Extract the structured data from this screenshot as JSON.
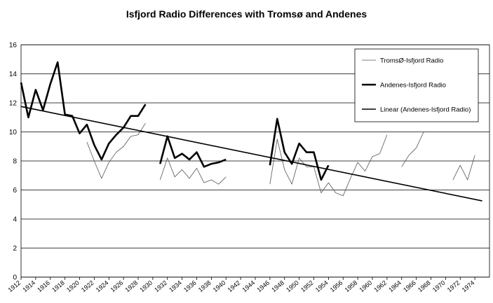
{
  "chart_data": {
    "type": "line",
    "title": "Isfjord Radio Differences with Tromsø and Andenes",
    "xlabel": "",
    "ylabel": "",
    "ylim": [
      0,
      16
    ],
    "xlim": [
      1912,
      1976
    ],
    "yticks": [
      0,
      2,
      4,
      6,
      8,
      10,
      12,
      14,
      16
    ],
    "xticks": [
      1912,
      1914,
      1916,
      1918,
      1920,
      1922,
      1924,
      1926,
      1928,
      1930,
      1932,
      1934,
      1936,
      1938,
      1940,
      1942,
      1944,
      1946,
      1948,
      1950,
      1952,
      1954,
      1956,
      1958,
      1960,
      1962,
      1964,
      1966,
      1968,
      1970,
      1972,
      1974
    ],
    "grid": "horizontal",
    "legend_position": "top-right",
    "series": [
      {
        "name": "TromsØ-Isfjord Radio",
        "color": "#000000",
        "style": "thin",
        "points": [
          [
            1921,
            9.3
          ],
          [
            1922,
            8.0
          ],
          [
            1923,
            6.8
          ],
          [
            1924,
            7.9
          ],
          [
            1925,
            8.6
          ],
          [
            1926,
            9.0
          ],
          [
            1927,
            9.7
          ],
          [
            1928,
            9.8
          ],
          [
            1929,
            10.6
          ],
          null,
          [
            1931,
            6.7
          ],
          [
            1932,
            8.2
          ],
          [
            1933,
            6.9
          ],
          [
            1934,
            7.4
          ],
          [
            1935,
            6.8
          ],
          [
            1936,
            7.5
          ],
          [
            1937,
            6.5
          ],
          [
            1938,
            6.7
          ],
          [
            1939,
            6.4
          ],
          [
            1940,
            6.9
          ],
          null,
          [
            1946,
            6.4
          ],
          [
            1947,
            9.5
          ],
          [
            1948,
            7.4
          ],
          [
            1949,
            6.4
          ],
          [
            1950,
            8.2
          ],
          [
            1951,
            7.6
          ],
          [
            1952,
            7.6
          ],
          [
            1953,
            5.8
          ],
          [
            1954,
            6.5
          ],
          [
            1955,
            5.8
          ],
          [
            1956,
            5.6
          ],
          [
            1957,
            6.8
          ],
          [
            1958,
            7.9
          ],
          [
            1959,
            7.3
          ],
          [
            1960,
            8.3
          ],
          [
            1961,
            8.5
          ],
          [
            1962,
            9.8
          ],
          null,
          [
            1964,
            7.6
          ],
          [
            1965,
            8.4
          ],
          [
            1966,
            8.9
          ],
          [
            1967,
            10.0
          ],
          null,
          [
            1971,
            6.7
          ],
          [
            1972,
            7.7
          ],
          [
            1973,
            6.7
          ],
          [
            1974,
            8.4
          ]
        ]
      },
      {
        "name": "Andenes-Isfjord Radio",
        "color": "#000000",
        "style": "thick",
        "points": [
          [
            1912,
            13.4
          ],
          [
            1913,
            11.0
          ],
          [
            1914,
            12.9
          ],
          [
            1915,
            11.5
          ],
          [
            1916,
            13.3
          ],
          [
            1917,
            14.8
          ],
          [
            1918,
            11.2
          ],
          [
            1919,
            11.1
          ],
          [
            1920,
            9.9
          ],
          [
            1921,
            10.5
          ],
          [
            1922,
            9.1
          ],
          [
            1923,
            8.1
          ],
          [
            1924,
            9.2
          ],
          [
            1925,
            9.8
          ],
          [
            1926,
            10.3
          ],
          [
            1927,
            11.1
          ],
          [
            1928,
            11.1
          ],
          [
            1929,
            11.9
          ],
          null,
          [
            1931,
            7.8
          ],
          [
            1932,
            9.7
          ],
          [
            1933,
            8.2
          ],
          [
            1934,
            8.5
          ],
          [
            1935,
            8.1
          ],
          [
            1936,
            8.6
          ],
          [
            1937,
            7.6
          ],
          [
            1938,
            7.8
          ],
          [
            1939,
            7.9
          ],
          [
            1940,
            8.1
          ],
          null,
          [
            1946,
            7.7
          ],
          [
            1947,
            10.9
          ],
          [
            1948,
            8.6
          ],
          [
            1949,
            7.8
          ],
          [
            1950,
            9.2
          ],
          [
            1951,
            8.6
          ],
          [
            1952,
            8.6
          ],
          [
            1953,
            6.7
          ],
          [
            1954,
            7.7
          ]
        ]
      },
      {
        "name": "Linear (Andenes-Isfjord Radio)",
        "color": "#000000",
        "style": "trend",
        "points": [
          [
            1912,
            11.75
          ],
          [
            1975,
            5.25
          ]
        ]
      }
    ]
  }
}
